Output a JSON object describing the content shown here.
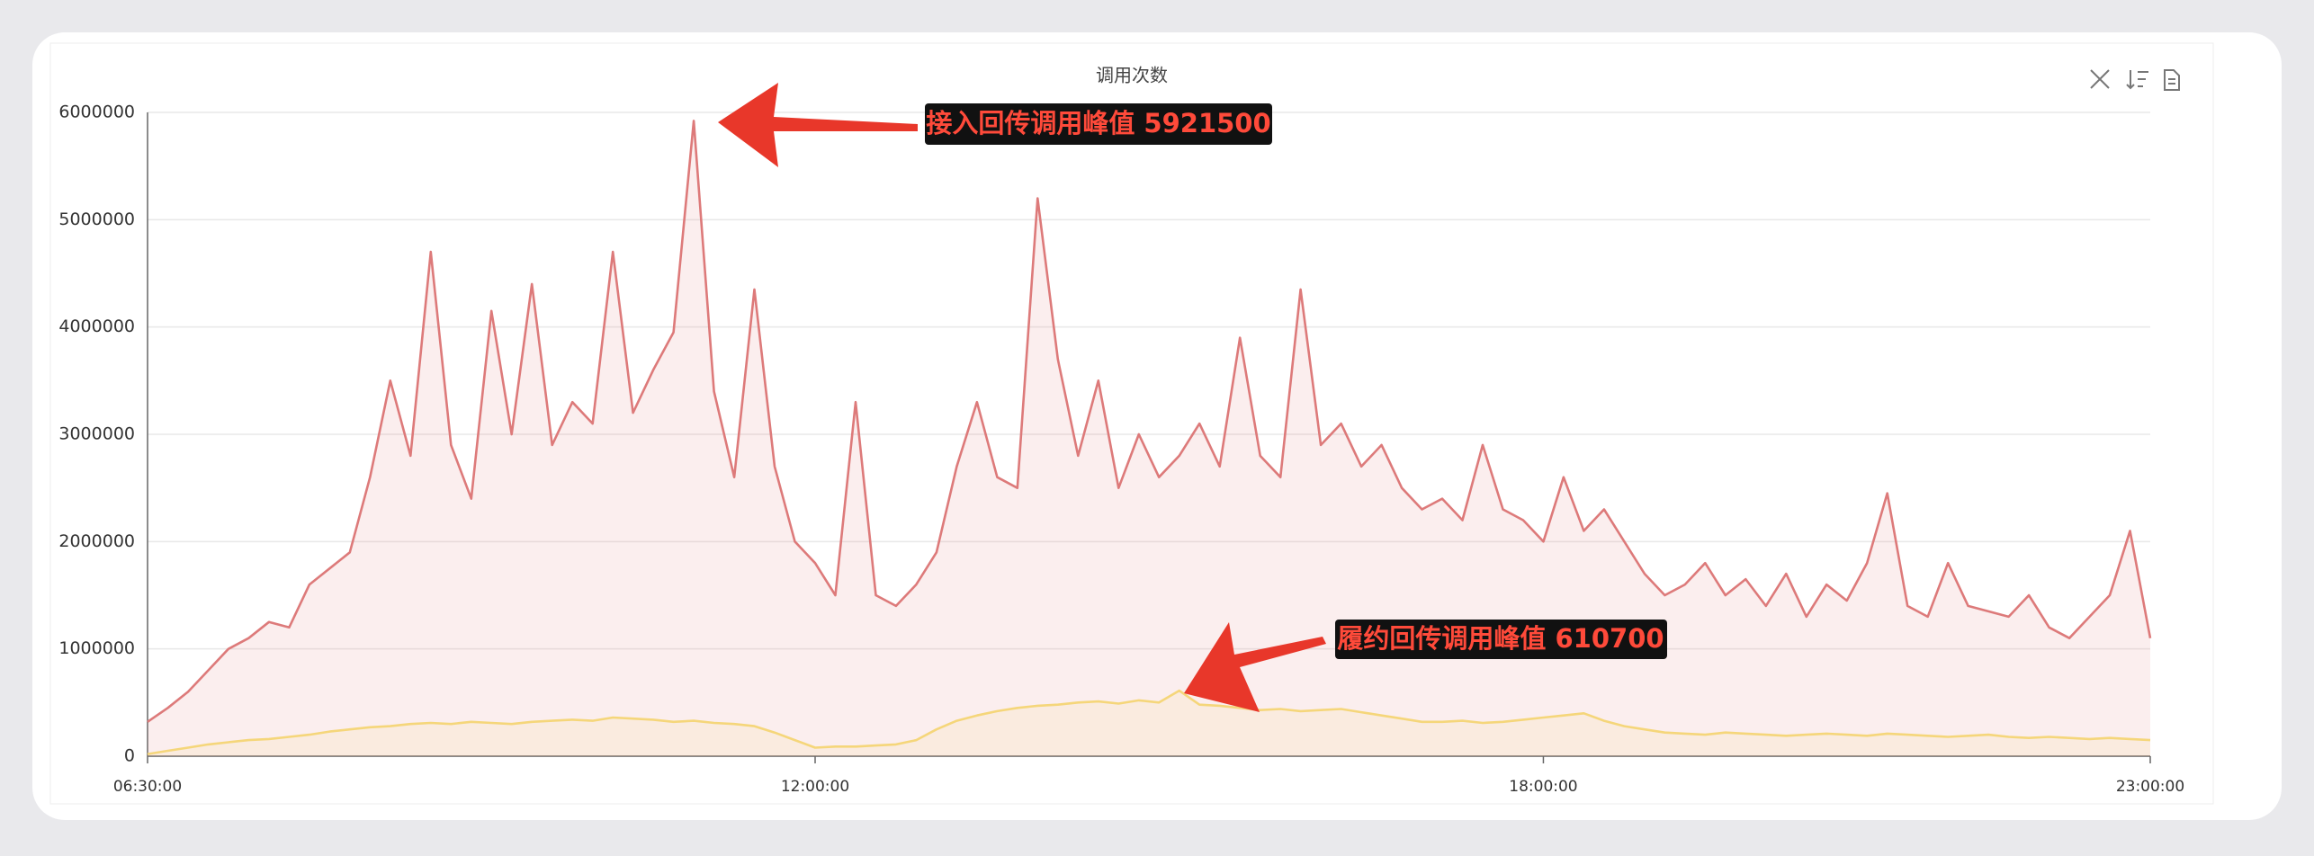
{
  "chart_data": {
    "type": "line",
    "title": "调用次数",
    "categories": [
      "06:30:00",
      null,
      null,
      null,
      null,
      null,
      null,
      null,
      null,
      null,
      null,
      null,
      null,
      null,
      null,
      null,
      null,
      null,
      null,
      null,
      null,
      null,
      null,
      null,
      null,
      null,
      null,
      null,
      null,
      null,
      null,
      null,
      null,
      "12:00:00",
      null,
      null,
      null,
      null,
      null,
      null,
      null,
      null,
      null,
      null,
      null,
      null,
      null,
      null,
      null,
      null,
      null,
      null,
      null,
      null,
      null,
      null,
      null,
      null,
      null,
      null,
      null,
      null,
      null,
      null,
      null,
      null,
      null,
      null,
      null,
      "18:00:00",
      null,
      null,
      null,
      null,
      null,
      null,
      null,
      null,
      null,
      null,
      null,
      null,
      null,
      null,
      null,
      null,
      null,
      null,
      null,
      null,
      null,
      null,
      null,
      null,
      null,
      null,
      null,
      null,
      null,
      "23:00:00"
    ],
    "series": [
      {
        "color": "#dd7a7a",
        "values": [
          320000,
          450000,
          600000,
          800000,
          1000000,
          1100000,
          1250000,
          1200000,
          1600000,
          1750000,
          1900000,
          2600000,
          3500000,
          2800000,
          4700000,
          2900000,
          2400000,
          4150000,
          3000000,
          4400000,
          2900000,
          3300000,
          3100000,
          4700000,
          3200000,
          3600000,
          3950000,
          5921500,
          3400000,
          2600000,
          4350000,
          2700000,
          2000000,
          1800000,
          1500000,
          3300000,
          1500000,
          1400000,
          1600000,
          1900000,
          2700000,
          3300000,
          2600000,
          2500000,
          5200000,
          3700000,
          2800000,
          3500000,
          2500000,
          3000000,
          2600000,
          2800000,
          3100000,
          2700000,
          3900000,
          2800000,
          2600000,
          4350000,
          2900000,
          3100000,
          2700000,
          2900000,
          2500000,
          2300000,
          2400000,
          2200000,
          2900000,
          2300000,
          2200000,
          2000000,
          2600000,
          2100000,
          2300000,
          2000000,
          1700000,
          1500000,
          1600000,
          1800000,
          1500000,
          1650000,
          1400000,
          1700000,
          1300000,
          1600000,
          1450000,
          1800000,
          2450000,
          1400000,
          1300000,
          1800000,
          1400000,
          1350000,
          1300000,
          1500000,
          1200000,
          1100000,
          1300000,
          1500000,
          2100000,
          1100000
        ]
      },
      {
        "color": "#f5d67a",
        "values": [
          20000,
          50000,
          80000,
          110000,
          130000,
          150000,
          160000,
          180000,
          200000,
          230000,
          250000,
          270000,
          280000,
          300000,
          310000,
          300000,
          320000,
          310000,
          300000,
          320000,
          330000,
          340000,
          330000,
          360000,
          350000,
          340000,
          320000,
          330000,
          310000,
          300000,
          280000,
          220000,
          150000,
          80000,
          90000,
          90000,
          100000,
          110000,
          150000,
          250000,
          330000,
          380000,
          420000,
          450000,
          470000,
          480000,
          500000,
          510000,
          490000,
          520000,
          500000,
          610700,
          480000,
          470000,
          450000,
          430000,
          440000,
          420000,
          430000,
          440000,
          410000,
          380000,
          350000,
          320000,
          320000,
          330000,
          310000,
          320000,
          340000,
          360000,
          380000,
          400000,
          330000,
          280000,
          250000,
          220000,
          210000,
          200000,
          220000,
          210000,
          200000,
          190000,
          200000,
          210000,
          200000,
          190000,
          210000,
          200000,
          190000,
          180000,
          190000,
          200000,
          180000,
          170000,
          180000,
          170000,
          160000,
          170000,
          160000,
          150000
        ]
      }
    ],
    "ylim": [
      0,
      6000000
    ],
    "yticks": [
      0,
      1000000,
      2000000,
      3000000,
      4000000,
      5000000,
      6000000
    ],
    "grid": true,
    "annotations": [
      "接入回传调用峰值 5921500",
      "履约回传调用峰值 610700"
    ]
  }
}
